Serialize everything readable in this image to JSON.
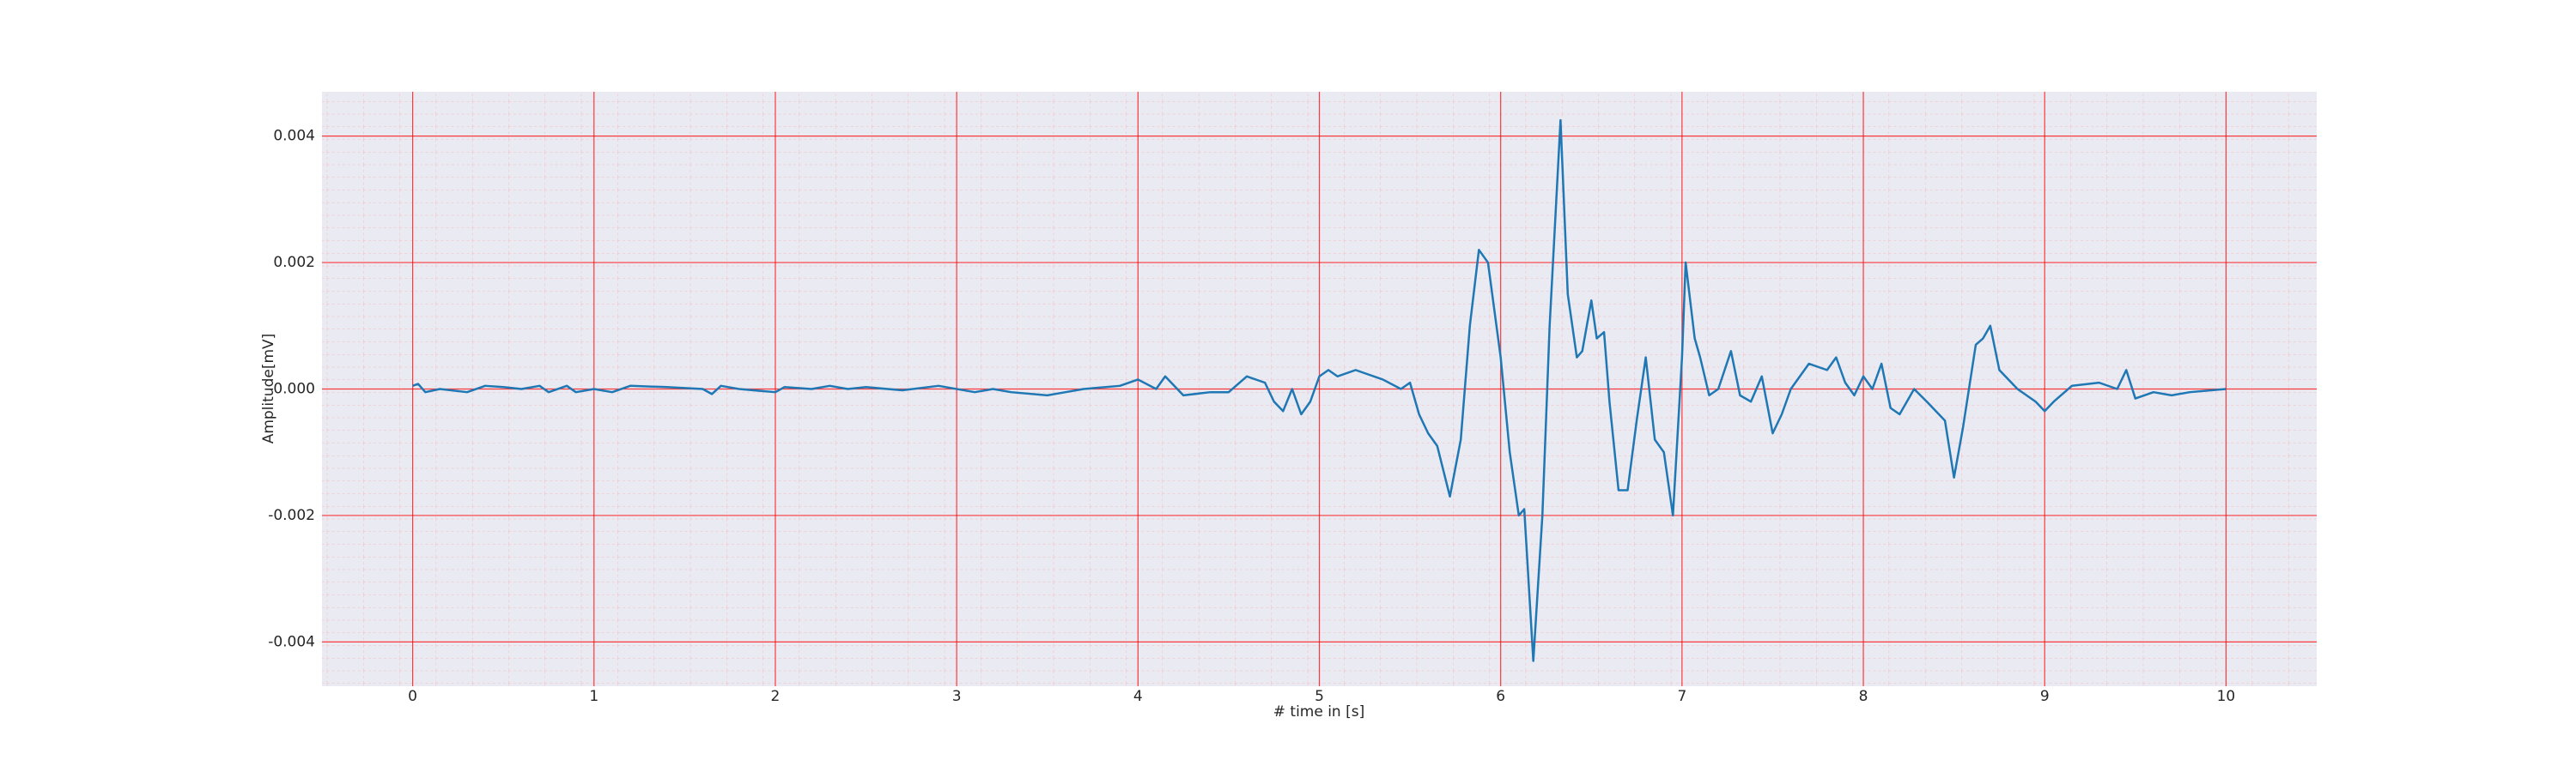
{
  "chart_data": {
    "type": "line",
    "x_label": "# time in [s]",
    "y_label": "Amplitude[mV]",
    "xlim": [
      -0.5,
      10.5
    ],
    "ylim": [
      -0.0047,
      0.0047
    ],
    "xticks": [
      0,
      1,
      2,
      3,
      4,
      5,
      6,
      7,
      8,
      9,
      10
    ],
    "yticks": [
      -0.004,
      -0.002,
      {
        "value": 0,
        "label": "0.000"
      },
      0.002,
      0.004
    ],
    "grid": true,
    "grid_color": "#ff0000",
    "background": "#eaeaf2",
    "series": [
      {
        "color": "#1f77b4",
        "x": [
          0,
          0.03,
          0.07,
          0.15,
          0.3,
          0.4,
          0.5,
          0.6,
          0.7,
          0.75,
          0.85,
          0.9,
          1,
          1.1,
          1.2,
          1.4,
          1.6,
          1.65,
          1.7,
          1.8,
          2,
          2.05,
          2.2,
          2.3,
          2.4,
          2.5,
          2.7,
          2.9,
          3.1,
          3.2,
          3.3,
          3.5,
          3.6,
          3.7,
          3.9,
          4,
          4.1,
          4.15,
          4.25,
          4.4,
          4.5,
          4.6,
          4.7,
          4.75,
          4.8,
          4.85,
          4.9,
          4.95,
          5,
          5.05,
          5.1,
          5.2,
          5.35,
          5.45,
          5.5,
          5.55,
          5.6,
          5.65,
          5.72,
          5.78,
          5.83,
          5.88,
          5.93,
          6,
          6.05,
          6.1,
          6.13,
          6.18,
          6.23,
          6.27,
          6.33,
          6.37,
          6.42,
          6.45,
          6.5,
          6.53,
          6.57,
          6.6,
          6.65,
          6.7,
          6.75,
          6.8,
          6.85,
          6.9,
          6.95,
          7,
          7.02,
          7.07,
          7.1,
          7.15,
          7.2,
          7.27,
          7.32,
          7.38,
          7.44,
          7.5,
          7.55,
          7.6,
          7.7,
          7.8,
          7.85,
          7.9,
          7.95,
          8,
          8.05,
          8.1,
          8.15,
          8.2,
          8.28,
          8.35,
          8.45,
          8.5,
          8.55,
          8.62,
          8.66,
          8.7,
          8.75,
          8.85,
          8.95,
          9,
          9.05,
          9.15,
          9.3,
          9.4,
          9.45,
          9.5,
          9.6,
          9.7,
          9.8,
          10
        ],
        "values": [
          5e-05,
          8e-05,
          -5e-05,
          0,
          -5e-05,
          5e-05,
          3e-05,
          0,
          5e-05,
          -5e-05,
          5e-05,
          -5e-05,
          0,
          -5e-05,
          5e-05,
          3e-05,
          0,
          -8e-05,
          5e-05,
          0,
          -5e-05,
          3e-05,
          0,
          5e-05,
          0,
          3e-05,
          -2e-05,
          5e-05,
          -5e-05,
          0,
          -5e-05,
          -0.0001,
          -5e-05,
          0,
          5e-05,
          0.00015,
          0,
          0.0002,
          -0.0001,
          -5e-05,
          -5e-05,
          0.0002,
          0.0001,
          -0.0002,
          -0.00035,
          0,
          -0.0004,
          -0.0002,
          0.0002,
          0.0003,
          0.0002,
          0.0003,
          0.00015,
          0,
          0.0001,
          -0.0004,
          -0.0007,
          -0.0009,
          -0.0017,
          -0.0008,
          0.001,
          0.0022,
          0.002,
          0.0005,
          -0.001,
          -0.002,
          -0.0019,
          -0.0043,
          -0.002,
          0.001,
          0.00425,
          0.0015,
          0.0005,
          0.0006,
          0.0014,
          0.0008,
          0.0009,
          -0.0002,
          -0.0016,
          -0.0016,
          -0.0005,
          0.0005,
          -0.0008,
          -0.001,
          -0.002,
          0.0005,
          0.002,
          0.0008,
          0.0005,
          -0.0001,
          0,
          0.0006,
          -0.0001,
          -0.0002,
          0.0002,
          -0.0007,
          -0.0004,
          0,
          0.0004,
          0.0003,
          0.0005,
          0.0001,
          -0.0001,
          0.0002,
          0,
          0.0004,
          -0.0003,
          -0.0004,
          0,
          -0.0002,
          -0.0005,
          -0.0014,
          -0.0006,
          0.0007,
          0.0008,
          0.001,
          0.0003,
          0,
          -0.0002,
          -0.00035,
          -0.0002,
          5e-05,
          0.0001,
          0,
          0.0003,
          -0.00015,
          -5e-05,
          -0.0001,
          -5e-05,
          0
        ]
      }
    ]
  }
}
